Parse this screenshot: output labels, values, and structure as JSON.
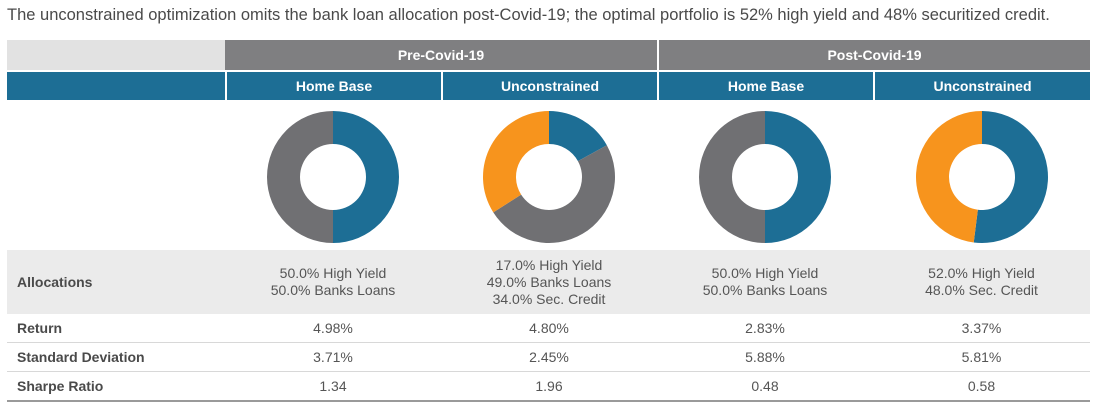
{
  "title": "The unconstrained optimization omits the bank loan allocation post-Covid-19; the optimal portfolio is 52% high yield and 48% securitized credit.",
  "colors": {
    "high_yield": "#1d6e95",
    "bank_loans": "#707073",
    "sec_credit": "#f7941d"
  },
  "periods": [
    "Pre-Covid-19",
    "Post-Covid-19"
  ],
  "scenarios": [
    "Home Base",
    "Unconstrained",
    "Home Base",
    "Unconstrained"
  ],
  "row_labels": {
    "allocations": "Allocations",
    "return": "Return",
    "std": "Standard Deviation",
    "sharpe": "Sharpe Ratio"
  },
  "allocations": [
    [
      "50.0% High Yield",
      "50.0% Banks Loans"
    ],
    [
      "17.0% High Yield",
      "49.0% Banks Loans",
      "34.0% Sec. Credit"
    ],
    [
      "50.0% High Yield",
      "50.0% Banks Loans"
    ],
    [
      "52.0% High Yield",
      "48.0% Sec. Credit"
    ]
  ],
  "returns": [
    "4.98%",
    "4.80%",
    "2.83%",
    "3.37%"
  ],
  "std_dev": [
    "3.71%",
    "2.45%",
    "5.88%",
    "5.81%"
  ],
  "sharpe": [
    "1.34",
    "1.96",
    "0.48",
    "0.58"
  ],
  "chart_data": [
    {
      "type": "pie",
      "style": "donut",
      "slices": [
        {
          "label": "High Yield",
          "value": 50.0,
          "color": "#1d6e95"
        },
        {
          "label": "Banks Loans",
          "value": 50.0,
          "color": "#707073"
        }
      ]
    },
    {
      "type": "pie",
      "style": "donut",
      "slices": [
        {
          "label": "High Yield",
          "value": 17.0,
          "color": "#1d6e95"
        },
        {
          "label": "Banks Loans",
          "value": 49.0,
          "color": "#707073"
        },
        {
          "label": "Sec. Credit",
          "value": 34.0,
          "color": "#f7941d"
        }
      ]
    },
    {
      "type": "pie",
      "style": "donut",
      "slices": [
        {
          "label": "High Yield",
          "value": 50.0,
          "color": "#1d6e95"
        },
        {
          "label": "Banks Loans",
          "value": 50.0,
          "color": "#707073"
        }
      ]
    },
    {
      "type": "pie",
      "style": "donut",
      "slices": [
        {
          "label": "High Yield",
          "value": 52.0,
          "color": "#1d6e95"
        },
        {
          "label": "Sec. Credit",
          "value": 48.0,
          "color": "#f7941d"
        }
      ]
    }
  ]
}
